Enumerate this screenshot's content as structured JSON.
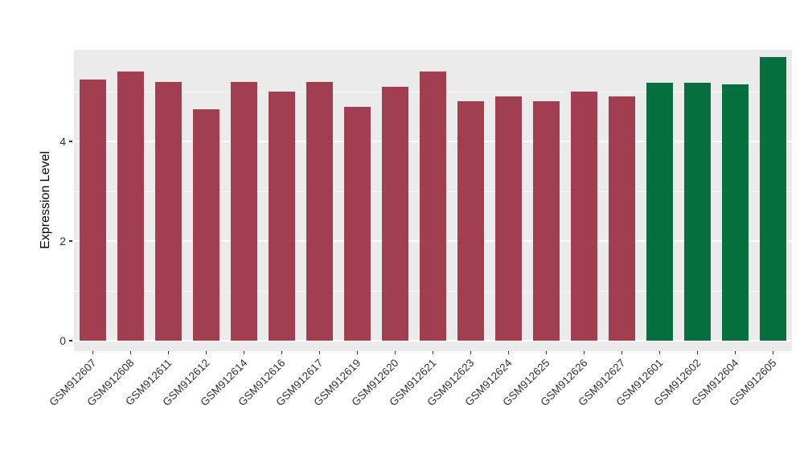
{
  "figure": {
    "background_color": "#FFFFFF",
    "panel_background_color": "#EBEBEB",
    "gridline_color": "#FFFFFF",
    "tick_text_color": "#333333"
  },
  "chart_data": {
    "type": "bar",
    "title": "",
    "xlabel": "",
    "ylabel": "Expression Level",
    "ylim": [
      0,
      5.95
    ],
    "yticks": [
      0,
      2,
      4
    ],
    "yticks_minor": [
      1,
      3,
      5
    ],
    "grid": "horizontal white major and minor gridlines on gray panel (ggplot style)",
    "legend": "none",
    "categories": [
      "GSM912607",
      "GSM912608",
      "GSM912611",
      "GSM912612",
      "GSM912614",
      "GSM912616",
      "GSM912617",
      "GSM912619",
      "GSM912620",
      "GSM912621",
      "GSM912623",
      "GSM912624",
      "GSM912625",
      "GSM912626",
      "GSM912627",
      "GSM912601",
      "GSM912602",
      "GSM912604",
      "GSM912605"
    ],
    "values": [
      5.25,
      5.4,
      5.2,
      4.65,
      5.2,
      5.0,
      5.2,
      4.7,
      5.1,
      5.4,
      4.8,
      4.9,
      4.8,
      5.0,
      4.9,
      5.18,
      5.18,
      5.15,
      5.7
    ],
    "bar_colors": [
      "#A13F50",
      "#A13F50",
      "#A13F50",
      "#A13F50",
      "#A13F50",
      "#A13F50",
      "#A13F50",
      "#A13F50",
      "#A13F50",
      "#A13F50",
      "#A13F50",
      "#A13F50",
      "#A13F50",
      "#A13F50",
      "#A13F50",
      "#06713E",
      "#06713E",
      "#06713E",
      "#06713E"
    ],
    "group_colors": {
      "maroon_group": "#A13F50",
      "green_group": "#06713E"
    }
  }
}
